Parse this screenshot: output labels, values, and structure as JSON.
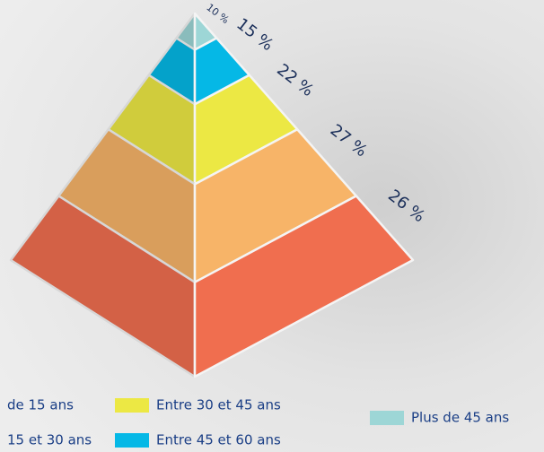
{
  "chart_data": {
    "type": "pyramid",
    "categories": [
      "Plus de 45 ans",
      "Entre 45 et 60 ans",
      "Entre 30 et 45 ans",
      "15 et 30 ans",
      "de 15 ans"
    ],
    "values": [
      10,
      15,
      22,
      27,
      26
    ],
    "value_labels": [
      "10 %",
      "15 %",
      "22 %",
      "27 %",
      "26 %"
    ],
    "colors": [
      "#9dd6d6",
      "#05b8e6",
      "#ece844",
      "#f7b468",
      "#f06e4f"
    ],
    "legend": true
  }
}
